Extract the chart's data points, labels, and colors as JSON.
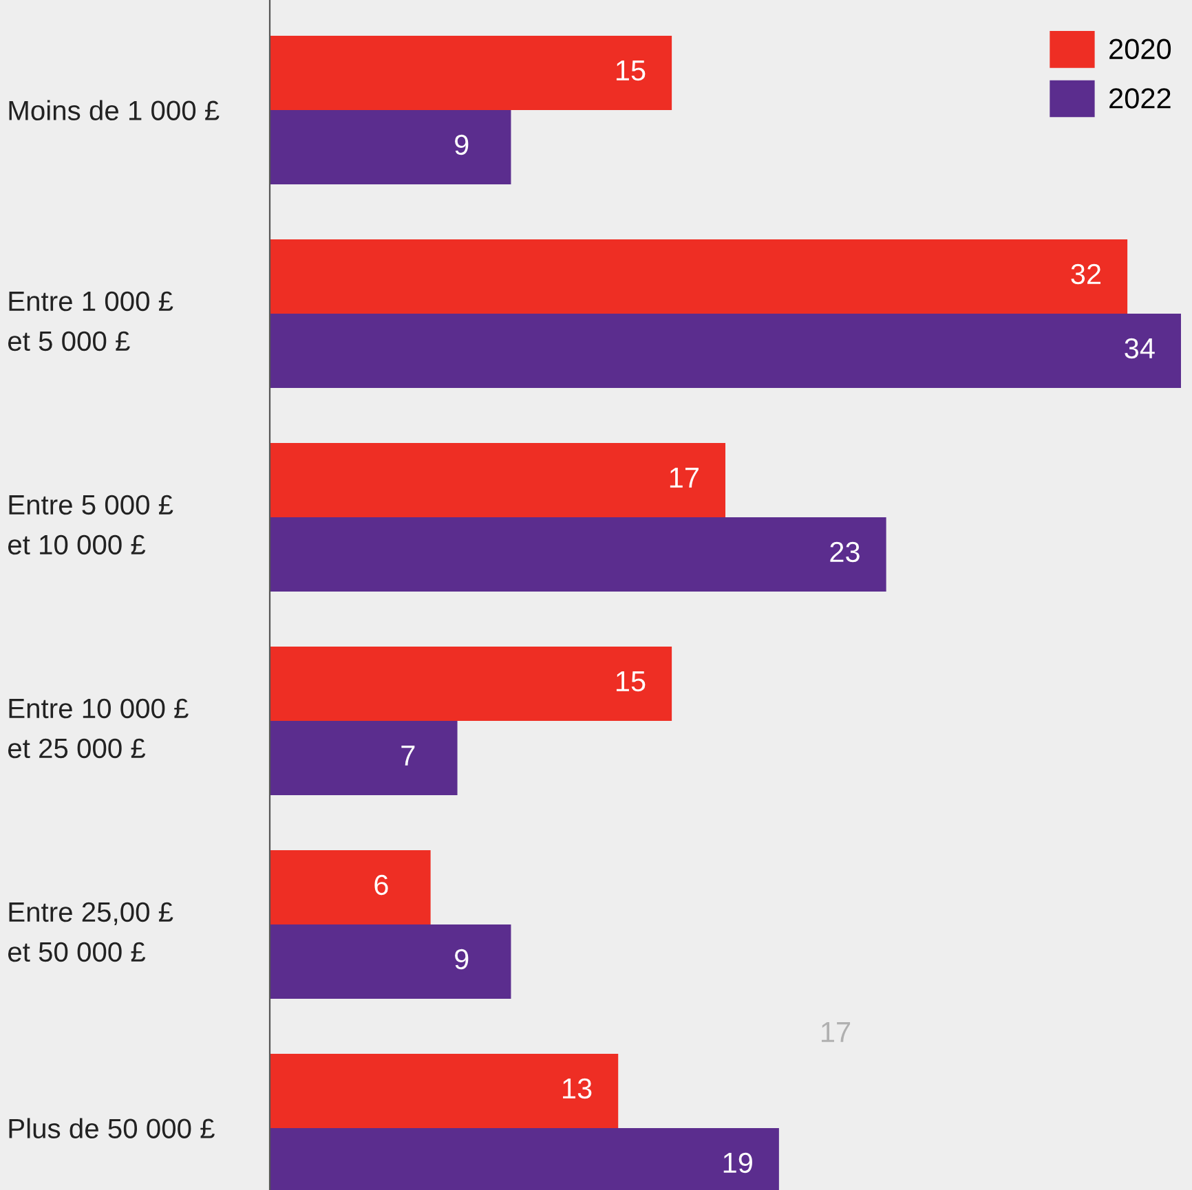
{
  "chart_data": {
    "type": "bar",
    "orientation": "horizontal",
    "data_labels": true,
    "legend": "top right",
    "grid": false,
    "categories": [
      "Moins de 1 000 £",
      "Entre 1 000 £\net 5 000 £",
      "Entre 5 000 £\net 10 000 £",
      "Entre 10 000 £\net 25 000 £",
      "Entre 25,00 £\net 50 000 £",
      "Plus de 50 000 £"
    ],
    "series": [
      {
        "name": "2020",
        "color": "#ee2e24",
        "values": [
          15,
          32,
          17,
          15,
          6,
          13
        ]
      },
      {
        "name": "2022",
        "color": "#5b2d8e",
        "values": [
          9,
          34,
          23,
          7,
          9,
          19
        ]
      }
    ],
    "annotations": [
      "17"
    ]
  }
}
